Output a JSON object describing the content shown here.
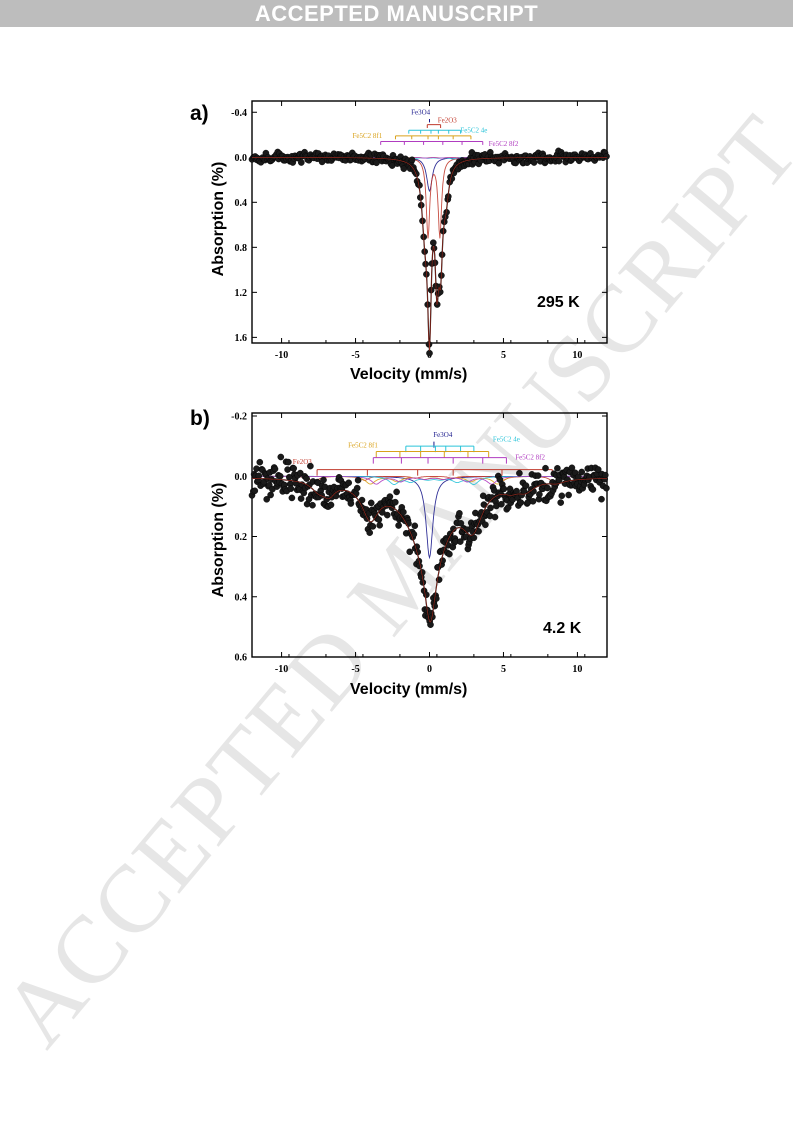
{
  "banner": "ACCEPTED MANUSCRIPT",
  "watermark": "ACCEPTED MANUSCRIPT",
  "colors": {
    "data": "#1a1a1a",
    "fit": "#000000",
    "Fe2O3": "#c0392b",
    "Fe3O4": "#1a1a8c",
    "Fe5C2_8f1": "#d9a21b",
    "Fe5C2_4e": "#2bc4d9",
    "Fe5C2_8f2": "#b03cc0"
  },
  "chart_data": [
    {
      "type": "scatter",
      "panel_label": "a)",
      "annotation": "295 K",
      "xlabel": "Velocity (mm/s)",
      "ylabel": "Absorption (%)",
      "xlim": [
        -12,
        12
      ],
      "ylim": [
        -0.5,
        1.65
      ],
      "y_inverted": true,
      "xticks": [
        -10,
        -5,
        0,
        5,
        10
      ],
      "yticks": [
        -0.4,
        0.0,
        0.4,
        0.8,
        1.2,
        1.6
      ],
      "ytick_labels": [
        "-0.4",
        "0.0",
        "0.4",
        "0.8",
        "1.2",
        "1.6"
      ],
      "components": [
        {
          "label": "Fe3O4",
          "type": "singlet",
          "center": 0.0,
          "depth": 0.3,
          "width": 0.45
        },
        {
          "label": "Fe2O3",
          "type": "doublet",
          "center": 0.3,
          "split": 0.8,
          "depth": 0.7,
          "width": 0.28
        },
        {
          "label": "Fe5C2 8f1",
          "type": "sextet",
          "center": 0.25,
          "hyperfine": 7.2,
          "depth": 0.02,
          "width": 0.5
        },
        {
          "label": "Fe5C2 4e",
          "type": "sextet",
          "center": 0.25,
          "hyperfine": 4.6,
          "depth": 0.02,
          "width": 0.5
        },
        {
          "label": "Fe5C2 8f2",
          "type": "sextet",
          "center": 0.25,
          "hyperfine": 6.8,
          "depth": 0.02,
          "width": 0.5
        }
      ],
      "fit_peaks": [
        {
          "x": -0.3,
          "depth": 0.55,
          "width": 0.55
        },
        {
          "x": 0.0,
          "depth": 1.35,
          "width": 0.3
        },
        {
          "x": 0.5,
          "depth": 0.9,
          "width": 0.3
        },
        {
          "x": 0.75,
          "depth": 0.75,
          "width": 0.3
        },
        {
          "x": 1.1,
          "depth": 0.3,
          "width": 0.5
        }
      ],
      "stick_labels": [
        {
          "text": "Fe3O4",
          "vel": -0.6,
          "pos": -0.38,
          "color": "Fe3O4"
        },
        {
          "text": "Fe2O3",
          "vel": 1.2,
          "pos": -0.31,
          "color": "Fe2O3"
        },
        {
          "text": "Fe5C2 4e",
          "vel": 3.0,
          "pos": -0.22,
          "color": "Fe5C2_4e"
        },
        {
          "text": "Fe5C2 8f1",
          "vel": -4.2,
          "pos": -0.17,
          "color": "Fe5C2_8f1"
        },
        {
          "text": "Fe5C2 8f2",
          "vel": 5.0,
          "pos": -0.1,
          "color": "Fe5C2_8f2"
        }
      ],
      "stick_sets": [
        {
          "color": "Fe3O4",
          "y": -0.34,
          "lines": [
            0.0
          ],
          "h": 0.03
        },
        {
          "color": "Fe2O3",
          "y": -0.29,
          "lines": [
            -0.15,
            0.75
          ],
          "h": 0.03
        },
        {
          "color": "Fe5C2_4e",
          "y": -0.24,
          "lines": [
            -1.4,
            -0.6,
            0.1,
            0.6,
            1.3,
            2.1
          ],
          "h": 0.03
        },
        {
          "color": "Fe5C2_8f1",
          "y": -0.19,
          "lines": [
            -2.3,
            -1.2,
            -0.1,
            0.6,
            1.6,
            2.8
          ],
          "h": 0.03
        },
        {
          "color": "Fe5C2_8f2",
          "y": -0.14,
          "lines": [
            -3.3,
            -1.7,
            -0.4,
            0.9,
            2.2,
            3.6
          ],
          "h": 0.03
        }
      ],
      "noise": 0.03,
      "points": 340
    },
    {
      "type": "scatter",
      "panel_label": "b)",
      "annotation": "4.2 K",
      "xlabel": "Velocity (mm/s)",
      "ylabel": "Absorption (%)",
      "xlim": [
        -12,
        12
      ],
      "ylim": [
        -0.21,
        0.6
      ],
      "y_inverted": true,
      "xticks": [
        -10,
        -5,
        0,
        5,
        10
      ],
      "yticks": [
        -0.2,
        0.0,
        0.2,
        0.4,
        0.6
      ],
      "ytick_labels": [
        "-0.2",
        "0.0",
        "0.2",
        "0.4",
        "0.6"
      ],
      "components": [
        {
          "label": "Fe3O4",
          "type": "singlet",
          "center": 0.0,
          "depth": 0.27,
          "width": 0.55
        },
        {
          "label": "Fe2O3",
          "type": "sextet",
          "center": 0.3,
          "hyperfine": 16.2,
          "depth": 0.02,
          "width": 0.6
        },
        {
          "label": "Fe5C2 8f1",
          "type": "sextet",
          "center": 0.3,
          "hyperfine": 8.6,
          "depth": 0.025,
          "width": 0.8
        },
        {
          "label": "Fe5C2 4e",
          "type": "sextet",
          "center": 0.3,
          "hyperfine": 5.4,
          "depth": 0.025,
          "width": 0.8
        },
        {
          "label": "Fe5C2 8f2",
          "type": "sextet",
          "center": 0.3,
          "hyperfine": 7.8,
          "depth": 0.025,
          "width": 0.8
        }
      ],
      "fit_peaks": [
        {
          "x": 0.05,
          "depth": 0.22,
          "width": 0.9
        },
        {
          "x": 0.0,
          "depth": 0.25,
          "width": 3.2
        },
        {
          "x": -4.0,
          "depth": 0.06,
          "width": 1.6
        },
        {
          "x": 2.8,
          "depth": 0.07,
          "width": 1.8
        },
        {
          "x": 5.5,
          "depth": 0.02,
          "width": 1.2
        },
        {
          "x": 8.6,
          "depth": 0.01,
          "width": 1.2
        },
        {
          "x": -7.5,
          "depth": 0.03,
          "width": 1.2
        }
      ],
      "stick_labels": [
        {
          "text": "Fe3O4",
          "vel": 0.9,
          "pos": -0.13,
          "color": "Fe3O4"
        },
        {
          "text": "Fe5C2 8f1",
          "vel": -4.5,
          "pos": -0.095,
          "color": "Fe5C2_8f1"
        },
        {
          "text": "Fe5C2 4e",
          "vel": 5.2,
          "pos": -0.115,
          "color": "Fe5C2_4e"
        },
        {
          "text": "Fe2O3",
          "vel": -8.6,
          "pos": -0.04,
          "color": "Fe2O3"
        },
        {
          "text": "Fe5C2 8f2",
          "vel": 6.8,
          "pos": -0.055,
          "color": "Fe5C2_8f2"
        }
      ],
      "stick_sets": [
        {
          "color": "Fe3O4",
          "y": -0.115,
          "lines": [
            0.3
          ],
          "h": 0.02
        },
        {
          "color": "Fe5C2_4e",
          "y": -0.1,
          "lines": [
            -1.6,
            -0.6,
            0.4,
            1.1,
            2.1,
            3.0
          ],
          "h": 0.02
        },
        {
          "color": "Fe5C2_8f1",
          "y": -0.082,
          "lines": [
            -3.6,
            -2.0,
            -0.6,
            1.0,
            2.6,
            4.0
          ],
          "h": 0.02
        },
        {
          "color": "Fe5C2_8f2",
          "y": -0.062,
          "lines": [
            -3.8,
            -1.9,
            -0.1,
            1.6,
            3.6,
            5.2
          ],
          "h": 0.02
        },
        {
          "color": "Fe2O3",
          "y": -0.022,
          "lines": [
            -7.6,
            -4.2,
            -0.8,
            1.6,
            4.9,
            8.3
          ],
          "h": 0.02
        }
      ],
      "noise": 0.035,
      "points": 420,
      "extra_bumps": [
        {
          "x": -4.0,
          "depth": 0.05,
          "width": 1.2
        },
        {
          "x": -6.8,
          "depth": 0.04,
          "width": 1.0
        },
        {
          "x": 3.0,
          "depth": 0.06,
          "width": 1.4
        },
        {
          "x": 6.5,
          "depth": 0.03,
          "width": 1.4
        }
      ]
    }
  ]
}
